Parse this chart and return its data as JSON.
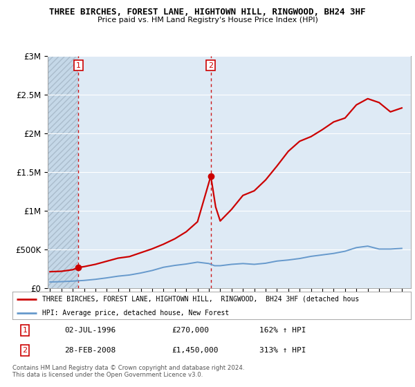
{
  "title": "THREE BIRCHES, FOREST LANE, HIGHTOWN HILL, RINGWOOD, BH24 3HF",
  "subtitle": "Price paid vs. HM Land Registry's House Price Index (HPI)",
  "ylim": [
    0,
    3000000
  ],
  "yticks": [
    0,
    500000,
    1000000,
    1500000,
    2000000,
    2500000,
    3000000
  ],
  "ytick_labels": [
    "£0",
    "£500K",
    "£1M",
    "£1.5M",
    "£2M",
    "£2.5M",
    "£3M"
  ],
  "background_color": "#ffffff",
  "plot_bg_color": "#deeaf5",
  "hatch_bg_color": "#c5d8e8",
  "grid_color": "#ffffff",
  "sale1_date": 1996.5,
  "sale1_price": 270000,
  "sale2_date": 2008.17,
  "sale2_price": 1450000,
  "legend_label1": "THREE BIRCHES, FOREST LANE, HIGHTOWN HILL,  RINGWOOD,  BH24 3HF (detached hous",
  "legend_label2": "HPI: Average price, detached house, New Forest",
  "note1_label": "1",
  "note1_date": "02-JUL-1996",
  "note1_price": "£270,000",
  "note1_hpi": "162% ↑ HPI",
  "note2_label": "2",
  "note2_date": "28-FEB-2008",
  "note2_price": "£1,450,000",
  "note2_hpi": "313% ↑ HPI",
  "footer": "Contains HM Land Registry data © Crown copyright and database right 2024.\nThis data is licensed under the Open Government Licence v3.0.",
  "line1_color": "#cc0000",
  "line2_color": "#6699cc",
  "marker_color": "#cc0000",
  "sale_label_color": "#cc0000",
  "hpi_years": [
    1994,
    1995,
    1996,
    1997,
    1998,
    1999,
    2000,
    2001,
    2002,
    2003,
    2004,
    2005,
    2006,
    2007,
    2008,
    2008.5,
    2009,
    2010,
    2011,
    2012,
    2013,
    2014,
    2015,
    2016,
    2017,
    2018,
    2019,
    2020,
    2021,
    2022,
    2023,
    2024,
    2025
  ],
  "hpi_values": [
    82000,
    86000,
    93000,
    102000,
    116000,
    135000,
    157000,
    172000,
    198000,
    230000,
    272000,
    296000,
    314000,
    338000,
    320000,
    292000,
    292000,
    310000,
    320000,
    310000,
    324000,
    352000,
    366000,
    385000,
    413000,
    432000,
    451000,
    479000,
    526000,
    545000,
    507000,
    507000,
    516000
  ],
  "property_years": [
    1994.0,
    1995.0,
    1996.0,
    1996.5,
    1997.0,
    1998.0,
    1999.0,
    2000.0,
    2001.0,
    2002.0,
    2003.0,
    2004.0,
    2005.0,
    2006.0,
    2007.0,
    2008.17,
    2008.6,
    2009.0,
    2010.0,
    2011.0,
    2012.0,
    2013.0,
    2014.0,
    2015.0,
    2016.0,
    2017.0,
    2018.0,
    2019.0,
    2020.0,
    2021.0,
    2022.0,
    2023.0,
    2024.0,
    2025.0
  ],
  "property_values": [
    215000,
    220000,
    240000,
    270000,
    280000,
    310000,
    350000,
    390000,
    410000,
    460000,
    510000,
    570000,
    640000,
    730000,
    860000,
    1450000,
    1050000,
    870000,
    1020000,
    1200000,
    1260000,
    1400000,
    1580000,
    1770000,
    1900000,
    1960000,
    2050000,
    2150000,
    2200000,
    2370000,
    2450000,
    2400000,
    2280000,
    2330000
  ],
  "xmin": 1993.8,
  "xmax": 2025.8,
  "xticks": [
    1994,
    1995,
    1996,
    1997,
    1998,
    1999,
    2000,
    2001,
    2002,
    2003,
    2004,
    2005,
    2006,
    2007,
    2008,
    2009,
    2010,
    2011,
    2012,
    2013,
    2014,
    2015,
    2016,
    2017,
    2018,
    2019,
    2020,
    2021,
    2022,
    2023,
    2024,
    2025
  ]
}
